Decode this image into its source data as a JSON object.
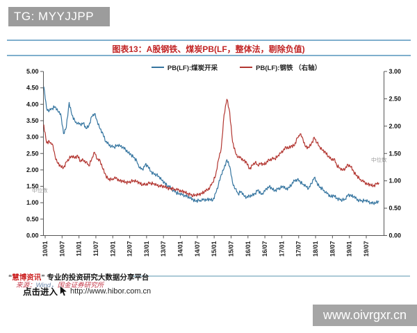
{
  "header": {
    "tag": "TG: MYYJJPP"
  },
  "figure_title": "图表13：A股钢铁、煤炭PB(LF，整体法，剔除负值)",
  "legend": [
    {
      "label": "PB(LF):煤炭开采",
      "color": "#34749f"
    },
    {
      "label": "PB(LF):钢铁 （右轴）",
      "color": "#b23530"
    }
  ],
  "watermark": {
    "text": "中位数"
  },
  "chart_data": {
    "type": "line",
    "title": "图表13：A股钢铁、煤炭PB(LF，整体法，剔除负值)",
    "x_unit": "month",
    "x_start": "2010/01",
    "x_end": "2019/12",
    "x_tick_labels": [
      "10/01",
      "10/07",
      "11/01",
      "11/07",
      "12/01",
      "12/07",
      "13/01",
      "13/07",
      "14/01",
      "14/07",
      "15/01",
      "15/07",
      "16/01",
      "16/07",
      "17/01",
      "17/07",
      "18/01",
      "18/07",
      "19/01",
      "19/07"
    ],
    "left_axis": {
      "min": 0,
      "max": 5,
      "step": 0.5,
      "ticks": [
        "0.00",
        "0.50",
        "1.00",
        "1.50",
        "2.00",
        "2.50",
        "3.00",
        "3.50",
        "4.00",
        "4.50",
        "5.00"
      ]
    },
    "right_axis": {
      "min": 0,
      "max": 3,
      "step": 0.5,
      "ticks": [
        "0.00",
        "0.50",
        "1.00",
        "1.50",
        "2.00",
        "2.50",
        "3.00"
      ]
    },
    "grid": false,
    "legend_position": "top",
    "series": [
      {
        "name": "PB(LF):煤炭开采",
        "axis": "left",
        "color": "#34749f",
        "values": [
          4.55,
          3.85,
          3.82,
          3.86,
          3.94,
          3.78,
          3.72,
          3.1,
          3.3,
          4.05,
          3.68,
          3.48,
          3.42,
          3.38,
          3.44,
          3.25,
          3.35,
          3.62,
          3.72,
          3.47,
          3.25,
          3.1,
          2.86,
          2.78,
          2.73,
          2.68,
          2.76,
          2.73,
          2.7,
          2.62,
          2.52,
          2.47,
          2.38,
          2.26,
          2.07,
          2.0,
          2.17,
          2.1,
          1.96,
          1.88,
          1.85,
          1.78,
          1.68,
          1.6,
          1.5,
          1.46,
          1.38,
          1.3,
          1.28,
          1.25,
          1.22,
          1.19,
          1.14,
          1.1,
          1.05,
          1.06,
          1.08,
          1.09,
          1.1,
          1.09,
          1.08,
          1.28,
          1.55,
          1.85,
          2.05,
          2.3,
          2.12,
          1.6,
          1.44,
          1.25,
          1.36,
          1.21,
          1.17,
          1.2,
          1.22,
          1.28,
          1.4,
          1.26,
          1.3,
          1.42,
          1.5,
          1.42,
          1.37,
          1.42,
          1.45,
          1.5,
          1.41,
          1.46,
          1.56,
          1.67,
          1.72,
          1.63,
          1.57,
          1.5,
          1.44,
          1.58,
          1.77,
          1.61,
          1.47,
          1.41,
          1.32,
          1.25,
          1.19,
          1.21,
          1.14,
          1.1,
          1.08,
          1.1,
          1.24,
          1.22,
          1.19,
          1.11,
          1.08,
          1.04,
          1.08,
          1.04,
          1.0,
          0.98,
          1.0,
          1.04
        ]
      },
      {
        "name": "PB(LF):钢铁（右轴）",
        "axis": "right",
        "color": "#b23530",
        "values": [
          2.02,
          1.7,
          1.71,
          1.68,
          1.45,
          1.32,
          1.26,
          1.24,
          1.34,
          1.41,
          1.45,
          1.42,
          1.46,
          1.36,
          1.38,
          1.35,
          1.27,
          1.4,
          1.52,
          1.4,
          1.36,
          1.22,
          1.1,
          1.03,
          1.02,
          1.05,
          1.04,
          1.0,
          0.99,
          0.98,
          0.97,
          0.99,
          1.0,
          0.99,
          0.96,
          0.93,
          0.93,
          0.96,
          0.95,
          0.95,
          0.92,
          0.91,
          0.9,
          0.89,
          0.87,
          0.86,
          0.85,
          0.84,
          0.83,
          0.81,
          0.79,
          0.77,
          0.75,
          0.73,
          0.74,
          0.75,
          0.77,
          0.8,
          0.83,
          0.89,
          0.97,
          1.1,
          1.38,
          1.6,
          2.2,
          2.5,
          2.25,
          1.72,
          1.52,
          1.43,
          1.42,
          1.37,
          1.33,
          1.22,
          1.28,
          1.34,
          1.28,
          1.32,
          1.3,
          1.33,
          1.38,
          1.41,
          1.4,
          1.45,
          1.5,
          1.56,
          1.61,
          1.6,
          1.64,
          1.65,
          1.78,
          1.86,
          1.76,
          1.62,
          1.6,
          1.68,
          1.79,
          1.7,
          1.61,
          1.56,
          1.52,
          1.45,
          1.39,
          1.41,
          1.28,
          1.24,
          1.19,
          1.23,
          1.29,
          1.26,
          1.17,
          1.1,
          1.04,
          1.0,
          0.97,
          0.94,
          0.92,
          0.91,
          0.94,
          0.97
        ]
      }
    ]
  },
  "footer": {
    "quote_open": "“",
    "brand": "慧博资讯",
    "quote_close": "”",
    "tagline": " 专业的投资研究大数据分享平台",
    "source_prefix": "来源：",
    "source_wind": "Wind，",
    "source_org": "国金证券研究所",
    "click_text": "点击进入",
    "url": "http://www.hibor.com.cn"
  },
  "site_banner": {
    "url": "www.oivrgxr.cn"
  }
}
